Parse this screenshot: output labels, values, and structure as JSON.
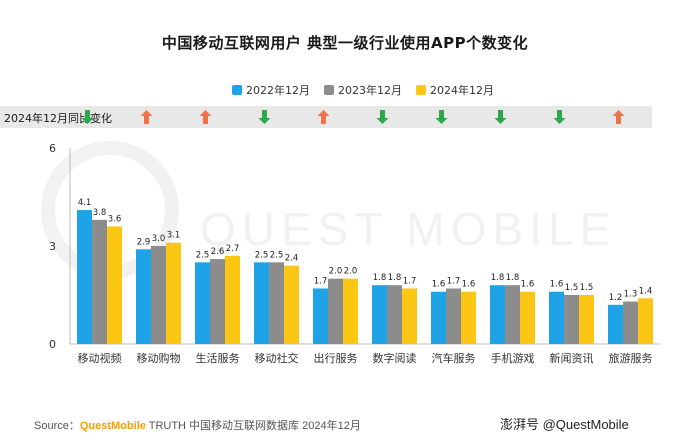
{
  "title": "中国移动互联网用户 典型一级行业使用APP个数变化",
  "yoy_label": "2024年12月同比变化",
  "source": {
    "prefix": "Source：",
    "brand": "QuestMobile",
    "rest": " TRUTH 中国移动互联网数据库 2024年12月"
  },
  "watermark": "澎湃号 @QuestMobile",
  "background_mark_text": "QUEST MOBILE",
  "colors": {
    "blue": "#1ea3e6",
    "gray": "#8c8c8c",
    "yellow": "#fcc614",
    "up_arrow": "#f0724a",
    "down_arrow": "#2aa84a"
  },
  "chart_data": {
    "type": "bar",
    "categories": [
      "移动视频",
      "移动购物",
      "生活服务",
      "移动社交",
      "出行服务",
      "数字阅读",
      "汽车服务",
      "手机游戏",
      "新闻资讯",
      "旅游服务"
    ],
    "series": [
      {
        "name": "2022年12月",
        "color": "#1ea3e6",
        "values": [
          4.1,
          2.9,
          2.5,
          2.5,
          1.7,
          1.8,
          1.6,
          1.8,
          1.6,
          1.2
        ]
      },
      {
        "name": "2023年12月",
        "color": "#8c8c8c",
        "values": [
          3.8,
          3.0,
          2.6,
          2.5,
          2.0,
          1.8,
          1.7,
          1.8,
          1.5,
          1.3
        ]
      },
      {
        "name": "2024年12月",
        "color": "#fcc614",
        "values": [
          3.6,
          3.1,
          2.7,
          2.4,
          2.0,
          1.7,
          1.6,
          1.6,
          1.5,
          1.4
        ]
      }
    ],
    "yoy_change": [
      "down",
      "up",
      "up",
      "down",
      "up",
      "down",
      "down",
      "down",
      "down",
      "up"
    ],
    "yticks": [
      0,
      3,
      6
    ],
    "ylim": [
      0,
      6
    ],
    "legend_position": "top-center",
    "grid": false
  }
}
